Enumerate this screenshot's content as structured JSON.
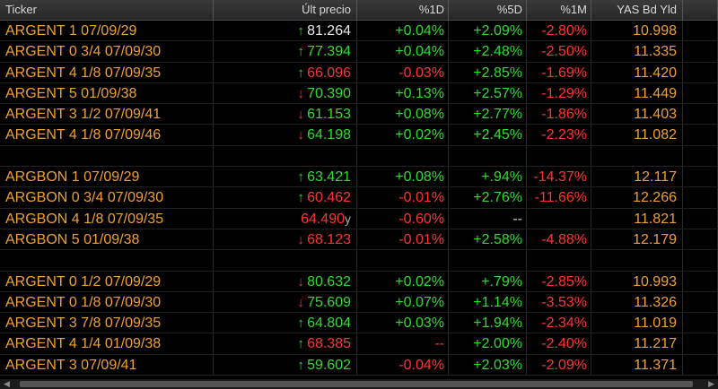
{
  "headers": [
    "Ticker",
    "Últ precio",
    "%1D",
    "%5D",
    "%1M",
    "YAS Bd Yld"
  ],
  "rows": [
    {
      "ticker": "ARGENT 1 07/09/29",
      "arrow": "up",
      "price": "81.264",
      "price_color": "price",
      "suffix": "",
      "d1": "+0.04%",
      "d1c": "pos",
      "d5": "+2.09%",
      "d5c": "pos",
      "m1": "-2.80%",
      "m1c": "neg",
      "yld": "10.998"
    },
    {
      "ticker": "ARGENT 0 3/4 07/09/30",
      "arrow": "up",
      "price": "77.394",
      "price_color": "up",
      "suffix": "",
      "d1": "+0.04%",
      "d1c": "pos",
      "d5": "+2.48%",
      "d5c": "pos",
      "m1": "-2.50%",
      "m1c": "neg",
      "yld": "11.335"
    },
    {
      "ticker": "ARGENT 4 1/8 07/09/35",
      "arrow": "up",
      "price": "66.096",
      "price_color": "dn",
      "suffix": "",
      "d1": "-0.03%",
      "d1c": "neg",
      "d5": "+2.85%",
      "d5c": "pos",
      "m1": "-1.69%",
      "m1c": "neg",
      "yld": "11.420"
    },
    {
      "ticker": "ARGENT 5 01/09/38",
      "arrow": "dn",
      "price": "70.390",
      "price_color": "up",
      "suffix": "",
      "d1": "+0.13%",
      "d1c": "pos",
      "d5": "+2.57%",
      "d5c": "pos",
      "m1": "-1.29%",
      "m1c": "neg",
      "yld": "11.449"
    },
    {
      "ticker": "ARGENT 3 1/2 07/09/41",
      "arrow": "dn",
      "price": "61.153",
      "price_color": "up",
      "suffix": "",
      "d1": "+0.08%",
      "d1c": "pos",
      "d5": "+2.77%",
      "d5c": "pos",
      "m1": "-1.86%",
      "m1c": "neg",
      "yld": "11.403"
    },
    {
      "ticker": "ARGENT 4 1/8 07/09/46",
      "arrow": "dn",
      "price": "64.198",
      "price_color": "up",
      "suffix": "",
      "d1": "+0.02%",
      "d1c": "pos",
      "d5": "+2.45%",
      "d5c": "pos",
      "m1": "-2.23%",
      "m1c": "neg",
      "yld": "11.082"
    },
    {
      "blank": true
    },
    {
      "ticker": "ARGBON 1 07/09/29",
      "arrow": "up",
      "price": "63.421",
      "price_color": "up",
      "suffix": "",
      "d1": "+0.08%",
      "d1c": "pos",
      "d5": "+.94%",
      "d5c": "pos",
      "m1": "-14.37%",
      "m1c": "neg",
      "yld": "12.117"
    },
    {
      "ticker": "ARGBON 0 3/4 07/09/30",
      "arrow": "up",
      "price": "60.462",
      "price_color": "dn",
      "suffix": "",
      "d1": "-0.01%",
      "d1c": "neg",
      "d5": "+2.76%",
      "d5c": "pos",
      "m1": "-11.66%",
      "m1c": "neg",
      "yld": "12.266"
    },
    {
      "ticker": "ARGBON 4 1/8 07/09/35",
      "arrow": "",
      "price": "64.490",
      "price_color": "dn",
      "suffix": "y",
      "d1": "-0.60%",
      "d1c": "neg",
      "d5": "--",
      "d5c": "dash",
      "m1": "",
      "m1c": "neg",
      "yld": "11.821"
    },
    {
      "ticker": "ARGBON 5 01/09/38",
      "arrow": "dn",
      "price": "68.123",
      "price_color": "dn",
      "suffix": "",
      "d1": "-0.01%",
      "d1c": "neg",
      "d5": "+2.58%",
      "d5c": "pos",
      "m1": "-4.88%",
      "m1c": "neg",
      "yld": "12.179"
    },
    {
      "blank": true
    },
    {
      "ticker": "ARGENT 0 1/2 07/09/29",
      "arrow": "dn",
      "price": "80.632",
      "price_color": "up",
      "suffix": "",
      "d1": "+0.02%",
      "d1c": "pos",
      "d5": "+.79%",
      "d5c": "pos",
      "m1": "-2.85%",
      "m1c": "neg",
      "yld": "10.993"
    },
    {
      "ticker": "ARGENT 0 1/8 07/09/30",
      "arrow": "dn",
      "price": "75.609",
      "price_color": "up",
      "suffix": "",
      "d1": "+0.07%",
      "d1c": "pos",
      "d5": "+1.14%",
      "d5c": "pos",
      "m1": "-3.53%",
      "m1c": "neg",
      "yld": "11.326"
    },
    {
      "ticker": "ARGENT 3 7/8 07/09/35",
      "arrow": "up",
      "price": "64.804",
      "price_color": "up",
      "suffix": "",
      "d1": "+0.03%",
      "d1c": "pos",
      "d5": "+1.94%",
      "d5c": "pos",
      "m1": "-2.34%",
      "m1c": "neg",
      "yld": "11.019"
    },
    {
      "ticker": "ARGENT 4 1/4 01/09/38",
      "arrow": "up",
      "price": "68.385",
      "price_color": "dn",
      "suffix": "",
      "d1": "--",
      "d1c": "neg",
      "d5": "+2.00%",
      "d5c": "pos",
      "m1": "-2.40%",
      "m1c": "neg",
      "yld": "11.217"
    },
    {
      "ticker": "ARGENT 3 07/09/41",
      "arrow": "up",
      "price": "59.602",
      "price_color": "up",
      "suffix": "",
      "d1": "-0.04%",
      "d1c": "neg",
      "d5": "+2.03%",
      "d5c": "pos",
      "m1": "-2.09%",
      "m1c": "neg",
      "yld": "11.371"
    }
  ],
  "colors": {
    "ticker": "#f0a030",
    "positive": "#2fdc2f",
    "negative": "#ff3333",
    "header_bg": "#2e2e2e",
    "background": "#000000"
  },
  "icons": {
    "up": "↑",
    "dn": "↓"
  }
}
